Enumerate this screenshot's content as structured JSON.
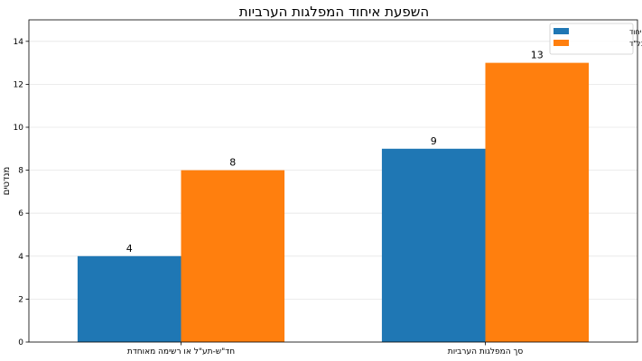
{
  "chart_data": {
    "type": "bar",
    "title": "השפעת איחוד המפלגות הערביות",
    "xlabel": "",
    "ylabel": "מנדטים",
    "categories": [
      "חד\"ש-תע\"ל או רשימה מאוחדת",
      "סך המפלגות הערביות"
    ],
    "series": [
      {
        "name": "ללא איחוד",
        "color": "#1f77b4",
        "values": [
          4,
          9
        ]
      },
      {
        "name": "איחוד כולל בל\"ד",
        "color": "#ff7f0e",
        "values": [
          8,
          13
        ]
      }
    ],
    "ylim": [
      0,
      15
    ],
    "yticks": [
      0,
      2,
      4,
      6,
      8,
      10,
      12,
      14
    ],
    "grid": true,
    "legend": "top-right"
  }
}
